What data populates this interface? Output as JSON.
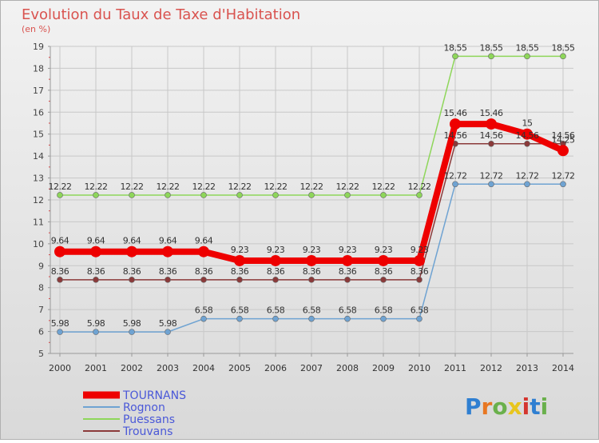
{
  "title": "Evolution du Taux de Taxe d'Habitation",
  "subtitle": "(en %)",
  "logo_text": "Proxiti",
  "colors": {
    "background_top": "#f2f2f2",
    "background_bottom": "#d9d9d9",
    "title": "#d9534f",
    "grid": "#c8c8c8",
    "legend_text": "#4a58d8"
  },
  "chart_data": {
    "type": "line",
    "title": "Evolution du Taux de Taxe d'Habitation",
    "ylabel": "(en %)",
    "xlabel": "",
    "ylim": [
      5,
      19
    ],
    "yticks": [
      5,
      6,
      7,
      8,
      9,
      10,
      11,
      12,
      13,
      14,
      15,
      16,
      17,
      18,
      19
    ],
    "grid": true,
    "legend_position": "bottom-left",
    "x": [
      "2000",
      "2001",
      "2002",
      "2003",
      "2004",
      "2005",
      "2006",
      "2007",
      "2008",
      "2009",
      "2010",
      "2011",
      "2012",
      "2013",
      "2014"
    ],
    "series": [
      {
        "name": "TOURNANS",
        "color": "#ee0000",
        "emphasis": true,
        "values": [
          9.64,
          9.64,
          9.64,
          9.64,
          9.64,
          9.23,
          9.23,
          9.23,
          9.23,
          9.23,
          9.23,
          15.46,
          15.46,
          15,
          14.25
        ],
        "labels": [
          "9.64",
          "9.64",
          "9.64",
          "9.64",
          "9.64",
          "9.23",
          "9.23",
          "9.23",
          "9.23",
          "9.23",
          "9.23",
          "15.46",
          "15.46",
          "15",
          "14.25"
        ]
      },
      {
        "name": "Rognon",
        "color": "#6fa3d2",
        "emphasis": false,
        "values": [
          5.98,
          5.98,
          5.98,
          5.98,
          6.58,
          6.58,
          6.58,
          6.58,
          6.58,
          6.58,
          6.58,
          12.72,
          12.72,
          12.72,
          12.72
        ],
        "labels": [
          "5.98",
          "5.98",
          "5.98",
          "5.98",
          "6.58",
          "6.58",
          "6.58",
          "6.58",
          "6.58",
          "6.58",
          "6.58",
          "12.72",
          "12.72",
          "12.72",
          "12.72"
        ]
      },
      {
        "name": "Puessans",
        "color": "#8ed65a",
        "emphasis": false,
        "values": [
          12.22,
          12.22,
          12.22,
          12.22,
          12.22,
          12.22,
          12.22,
          12.22,
          12.22,
          12.22,
          12.22,
          18.55,
          18.55,
          18.55,
          18.55
        ],
        "labels": [
          "12.22",
          "12.22",
          "12.22",
          "12.22",
          "12.22",
          "12.22",
          "12.22",
          "12.22",
          "12.22",
          "12.22",
          "12.22",
          "18.55",
          "18.55",
          "18.55",
          "18.55"
        ]
      },
      {
        "name": "Trouvans",
        "color": "#8b3a3a",
        "emphasis": false,
        "values": [
          8.36,
          8.36,
          8.36,
          8.36,
          8.36,
          8.36,
          8.36,
          8.36,
          8.36,
          8.36,
          8.36,
          14.56,
          14.56,
          14.56,
          14.56
        ],
        "labels": [
          "8.36",
          "8.36",
          "8.36",
          "8.36",
          "8.36",
          "8.36",
          "8.36",
          "8.36",
          "8.36",
          "8.36",
          "8.36",
          "14.56",
          "14.56",
          "14.56",
          "14.56"
        ]
      }
    ]
  }
}
